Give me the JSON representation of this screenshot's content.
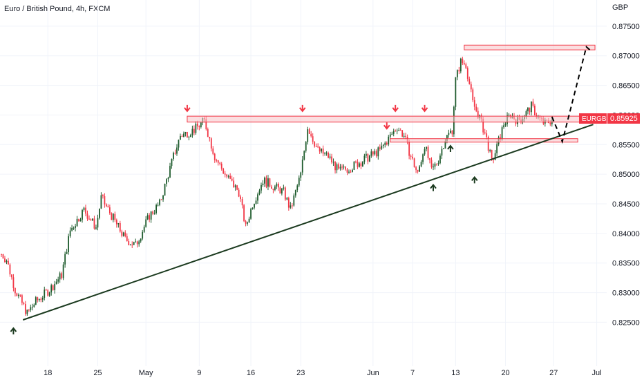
{
  "header": {
    "title": "Euro / British Pound, 4h, FXCM"
  },
  "price_axis": {
    "currency": "GBP"
  },
  "price_label": {
    "symbol": "EURGBP",
    "value": "0.85925"
  },
  "colors": {
    "up": "#1e5b2d",
    "down": "#f23645",
    "zone_fill": "#f7c3c6",
    "zone_stroke": "#f23645",
    "trendline": "#1b3a1f",
    "arrow_up": "#1b3a1f",
    "arrow_down": "#f23645",
    "label_bg": "#f23645"
  },
  "chart_data": {
    "type": "candlestick",
    "title": "Euro / British Pound, 4h, FXCM",
    "ylim": [
      0.8205,
      0.8765
    ],
    "y_ticks": [
      "0.87500",
      "0.87000",
      "0.86500",
      "0.86000",
      "0.85500",
      "0.85000",
      "0.84500",
      "0.84000",
      "0.83500",
      "0.83000",
      "0.82500"
    ],
    "x_ticks": [
      "18",
      "25",
      "May",
      "9",
      "16",
      "23",
      "Jun",
      "7",
      "13",
      "20",
      "27",
      "Jul"
    ],
    "anchors": [
      [
        0,
        0.8365
      ],
      [
        3,
        0.8355
      ],
      [
        8,
        0.8305
      ],
      [
        15,
        0.8265
      ],
      [
        20,
        0.8285
      ],
      [
        28,
        0.8305
      ],
      [
        35,
        0.833
      ],
      [
        40,
        0.8405
      ],
      [
        48,
        0.844
      ],
      [
        55,
        0.841
      ],
      [
        58,
        0.846
      ],
      [
        66,
        0.842
      ],
      [
        72,
        0.839
      ],
      [
        78,
        0.838
      ],
      [
        86,
        0.843
      ],
      [
        92,
        0.845
      ],
      [
        100,
        0.853
      ],
      [
        104,
        0.8565
      ],
      [
        112,
        0.8575
      ],
      [
        118,
        0.859
      ],
      [
        124,
        0.853
      ],
      [
        130,
        0.85
      ],
      [
        138,
        0.847
      ],
      [
        142,
        0.841
      ],
      [
        146,
        0.845
      ],
      [
        152,
        0.849
      ],
      [
        158,
        0.848
      ],
      [
        164,
        0.847
      ],
      [
        168,
        0.844
      ],
      [
        174,
        0.85
      ],
      [
        178,
        0.858
      ],
      [
        184,
        0.854
      ],
      [
        190,
        0.853
      ],
      [
        196,
        0.8505
      ],
      [
        202,
        0.851
      ],
      [
        208,
        0.852
      ],
      [
        214,
        0.853
      ],
      [
        220,
        0.854
      ],
      [
        225,
        0.856
      ],
      [
        230,
        0.858
      ],
      [
        234,
        0.8565
      ],
      [
        238,
        0.853
      ],
      [
        242,
        0.85
      ],
      [
        246,
        0.855
      ],
      [
        250,
        0.8505
      ],
      [
        254,
        0.8525
      ],
      [
        258,
        0.856
      ],
      [
        262,
        0.8575
      ],
      [
        264,
        0.866
      ],
      [
        267,
        0.869
      ],
      [
        270,
        0.8685
      ],
      [
        274,
        0.862
      ],
      [
        278,
        0.8595
      ],
      [
        282,
        0.856
      ],
      [
        285,
        0.852
      ],
      [
        288,
        0.8545
      ],
      [
        292,
        0.8585
      ],
      [
        296,
        0.86
      ],
      [
        300,
        0.859
      ],
      [
        304,
        0.86
      ],
      [
        308,
        0.8615
      ],
      [
        312,
        0.8595
      ],
      [
        316,
        0.8585
      ],
      [
        320,
        0.8592
      ]
    ],
    "trendline": [
      [
        0.5,
        0.8254
      ],
      [
        344,
        0.8584
      ]
    ],
    "dashed_projection": [
      [
        320,
        0.8597
      ],
      [
        326,
        0.8555
      ],
      [
        340,
        0.8715
      ],
      [
        342,
        0.871
      ]
    ],
    "zones": [
      {
        "start": 108,
        "end": 338,
        "high": 0.8598,
        "low": 0.8588
      },
      {
        "start": 226,
        "end": 335,
        "high": 0.856,
        "low": 0.8555
      },
      {
        "start": 269,
        "end": 345,
        "high": 0.8718,
        "low": 0.871
      }
    ],
    "arrows_down": [
      108,
      175,
      229,
      246,
      224
    ],
    "arrows_up": [
      7,
      251,
      261,
      275
    ]
  }
}
